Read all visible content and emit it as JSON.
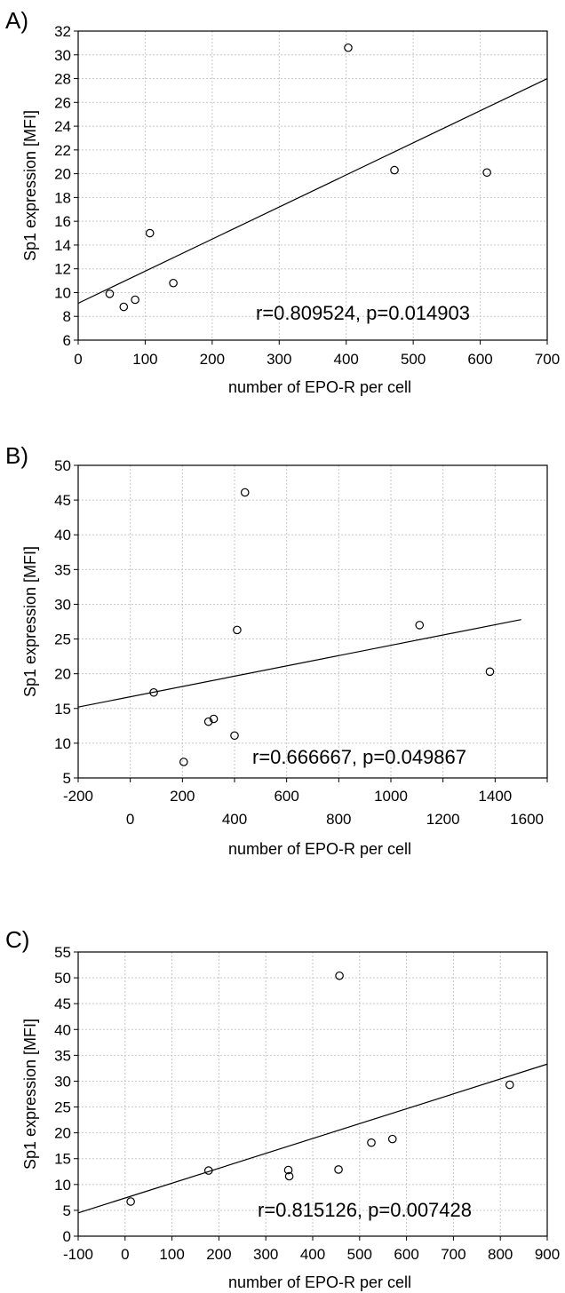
{
  "chart_data": [
    {
      "type": "scatter",
      "panel_label": "A)",
      "xlabel": "number of EPO-R per cell",
      "ylabel": "Sp1 expression [MFI]",
      "xlim": [
        0,
        700
      ],
      "ylim": [
        6,
        32
      ],
      "xticks": [
        0,
        100,
        200,
        300,
        400,
        500,
        600,
        700
      ],
      "yticks": [
        6,
        8,
        10,
        12,
        14,
        16,
        18,
        20,
        22,
        24,
        26,
        28,
        30,
        32
      ],
      "grid": true,
      "points": [
        {
          "x": 47,
          "y": 9.9
        },
        {
          "x": 68,
          "y": 8.8
        },
        {
          "x": 85,
          "y": 9.4
        },
        {
          "x": 107,
          "y": 15.0
        },
        {
          "x": 142,
          "y": 10.8
        },
        {
          "x": 403,
          "y": 30.6
        },
        {
          "x": 472,
          "y": 20.3
        },
        {
          "x": 610,
          "y": 20.1
        }
      ],
      "fit_line": {
        "x": [
          0,
          700
        ],
        "y": [
          9.1,
          28.0
        ]
      },
      "annotation": "r=0.809524, p=0.014903"
    },
    {
      "type": "scatter",
      "panel_label": "B)",
      "xlabel": "number of EPO-R per cell",
      "ylabel": "Sp1 expression [MFI]",
      "xlim": [
        -200,
        1600
      ],
      "ylim": [
        5,
        50
      ],
      "xticks_top": [
        -200,
        200,
        600,
        1000,
        1400
      ],
      "xticks_bottom": [
        0,
        400,
        800,
        1200,
        1600
      ],
      "yticks": [
        5,
        10,
        15,
        20,
        25,
        30,
        35,
        40,
        45,
        50
      ],
      "grid": true,
      "points": [
        {
          "x": 90,
          "y": 17.3
        },
        {
          "x": 205,
          "y": 7.3
        },
        {
          "x": 300,
          "y": 13.1
        },
        {
          "x": 320,
          "y": 13.5
        },
        {
          "x": 400,
          "y": 11.1
        },
        {
          "x": 410,
          "y": 26.3
        },
        {
          "x": 440,
          "y": 46.1
        },
        {
          "x": 1110,
          "y": 27.0
        },
        {
          "x": 1380,
          "y": 20.3
        }
      ],
      "fit_line": {
        "x": [
          -200,
          1500
        ],
        "y": [
          15.2,
          27.8
        ]
      },
      "annotation": "r=0.666667, p=0.049867"
    },
    {
      "type": "scatter",
      "panel_label": "C)",
      "xlabel": "number of EPO-R per cell",
      "ylabel": "Sp1 expression [MFI]",
      "xlim": [
        -100,
        900
      ],
      "ylim": [
        0,
        55
      ],
      "xticks": [
        -100,
        0,
        100,
        200,
        300,
        400,
        500,
        600,
        700,
        800,
        900
      ],
      "yticks": [
        0,
        5,
        10,
        15,
        20,
        25,
        30,
        35,
        40,
        45,
        50,
        55
      ],
      "grid": true,
      "points": [
        {
          "x": 12,
          "y": 6.7
        },
        {
          "x": 178,
          "y": 12.7
        },
        {
          "x": 348,
          "y": 12.8
        },
        {
          "x": 350,
          "y": 11.6
        },
        {
          "x": 455,
          "y": 12.9
        },
        {
          "x": 457,
          "y": 50.4
        },
        {
          "x": 525,
          "y": 18.1
        },
        {
          "x": 570,
          "y": 18.8
        },
        {
          "x": 820,
          "y": 29.3
        }
      ],
      "fit_line": {
        "x": [
          -100,
          900
        ],
        "y": [
          4.5,
          33.3
        ]
      },
      "annotation": "r=0.815126, p=0.007428"
    }
  ]
}
